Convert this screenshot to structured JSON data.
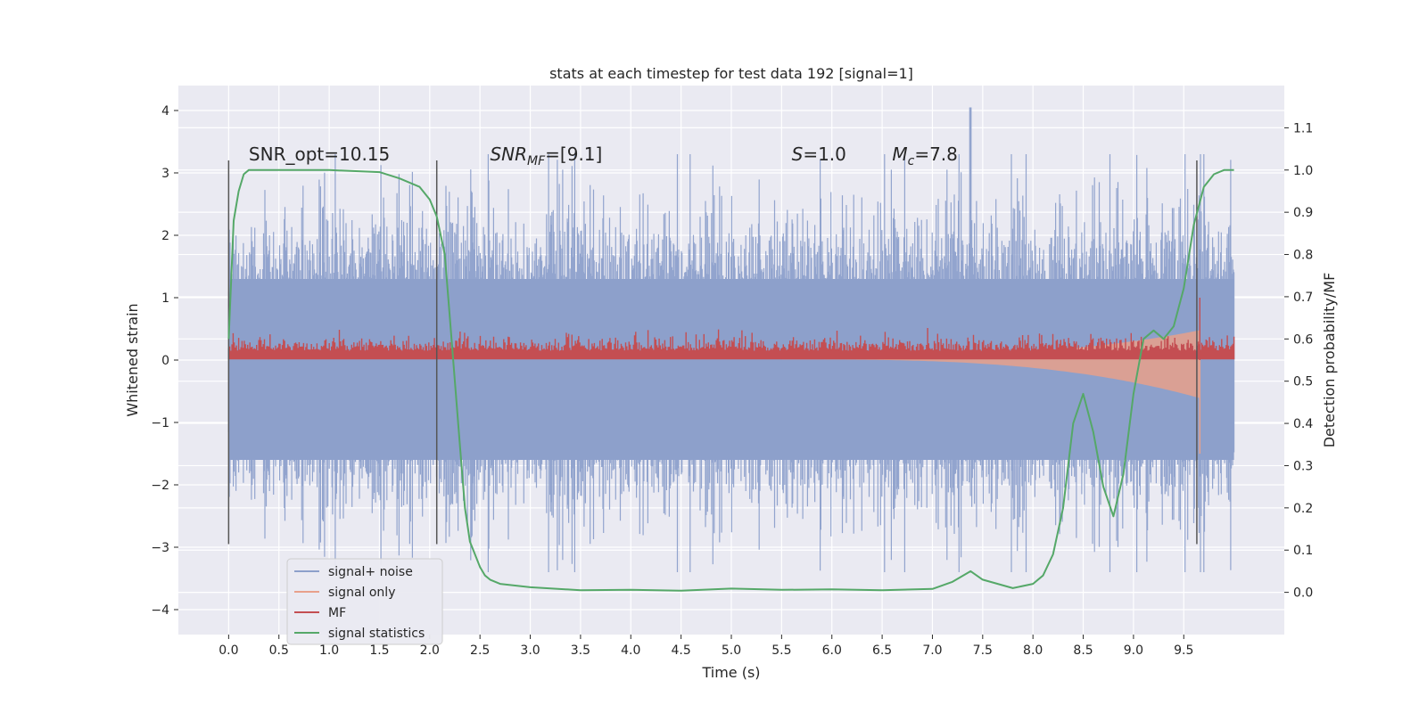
{
  "chart_data": {
    "type": "line",
    "title": "stats at each timestep for test data 192 [signal=1]",
    "xlabel": "Time (s)",
    "ylabel": "Whitened strain",
    "y2label": "Detection probability/MF",
    "xlim": [
      -0.5,
      10.5
    ],
    "ylim": [
      -4.4,
      4.4
    ],
    "y2lim": [
      -0.1,
      1.2
    ],
    "xticks": [
      "0.0",
      "0.5",
      "1.0",
      "1.5",
      "2.0",
      "2.5",
      "3.0",
      "3.5",
      "4.0",
      "4.5",
      "5.0",
      "5.5",
      "6.0",
      "6.5",
      "7.0",
      "7.5",
      "8.0",
      "8.5",
      "9.0",
      "9.5"
    ],
    "yticks": [
      "4",
      "3",
      "2",
      "1",
      "0",
      "−1",
      "−2",
      "−3",
      "−4"
    ],
    "y2ticks": [
      "1.1",
      "1.0",
      "0.9",
      "0.8",
      "0.7",
      "0.6",
      "0.5",
      "0.4",
      "0.3",
      "0.2",
      "0.1",
      "0.0"
    ],
    "grid": true,
    "legend_position": "lower-left",
    "annotations": [
      {
        "id": "snr-opt",
        "text": "SNR_opt=10.15",
        "x": 0.2,
        "y": 3.2
      },
      {
        "id": "snr-mf",
        "text": "SNR",
        "sub": "MF",
        "tail": "=[9.1]",
        "x": 2.6,
        "y": 3.2
      },
      {
        "id": "s-value",
        "text": "S",
        "tail": "=1.0",
        "x": 5.6,
        "y": 3.2
      },
      {
        "id": "mc-value",
        "text": "M",
        "sub": "c",
        "tail": "=7.8",
        "x": 6.6,
        "y": 3.2
      }
    ],
    "vlines": [
      0.0,
      2.07,
      9.63
    ],
    "vline_range": [
      -2.95,
      3.2
    ],
    "series": [
      {
        "name": "signal+ noise",
        "color": "#8da0cb",
        "kind": "noise",
        "x_range": [
          0.0,
          10.0
        ],
        "amplitude_typical": 1.2,
        "amplitude_peak": 4.05,
        "peak_at": 7.38
      },
      {
        "name": "signal only",
        "color": "#e8a08b",
        "kind": "chirp",
        "x_range": [
          0.0,
          9.66
        ],
        "amplitude_end": 0.62
      },
      {
        "name": "MF",
        "color": "#c44e52",
        "kind": "mf",
        "x_range": [
          0.0,
          10.0
        ],
        "baseline": 0.07,
        "peak": 1.0,
        "peak_at": 9.66
      },
      {
        "name": "signal statistics",
        "color": "#55a868",
        "axis": "right",
        "x": [
          0.0,
          0.05,
          0.1,
          0.15,
          0.2,
          0.3,
          0.5,
          1.0,
          1.5,
          1.7,
          1.9,
          2.0,
          2.07,
          2.15,
          2.2,
          2.25,
          2.3,
          2.35,
          2.4,
          2.5,
          2.55,
          2.6,
          2.7,
          3.0,
          3.5,
          4.0,
          4.5,
          5.0,
          5.5,
          6.0,
          6.5,
          7.0,
          7.2,
          7.38,
          7.5,
          7.8,
          8.0,
          8.1,
          8.2,
          8.3,
          8.4,
          8.5,
          8.6,
          8.7,
          8.8,
          8.9,
          9.0,
          9.1,
          9.2,
          9.3,
          9.4,
          9.5,
          9.6,
          9.7,
          9.8,
          9.9,
          10.0
        ],
        "y": [
          0.6,
          0.88,
          0.95,
          0.99,
          1.0,
          1.0,
          1.0,
          1.0,
          0.995,
          0.98,
          0.96,
          0.93,
          0.89,
          0.8,
          0.65,
          0.5,
          0.35,
          0.2,
          0.12,
          0.06,
          0.04,
          0.03,
          0.02,
          0.012,
          0.005,
          0.006,
          0.004,
          0.009,
          0.006,
          0.007,
          0.005,
          0.008,
          0.025,
          0.05,
          0.03,
          0.01,
          0.02,
          0.04,
          0.09,
          0.2,
          0.4,
          0.47,
          0.38,
          0.25,
          0.18,
          0.28,
          0.47,
          0.6,
          0.62,
          0.6,
          0.63,
          0.72,
          0.87,
          0.96,
          0.99,
          1.0,
          1.0
        ]
      }
    ]
  }
}
